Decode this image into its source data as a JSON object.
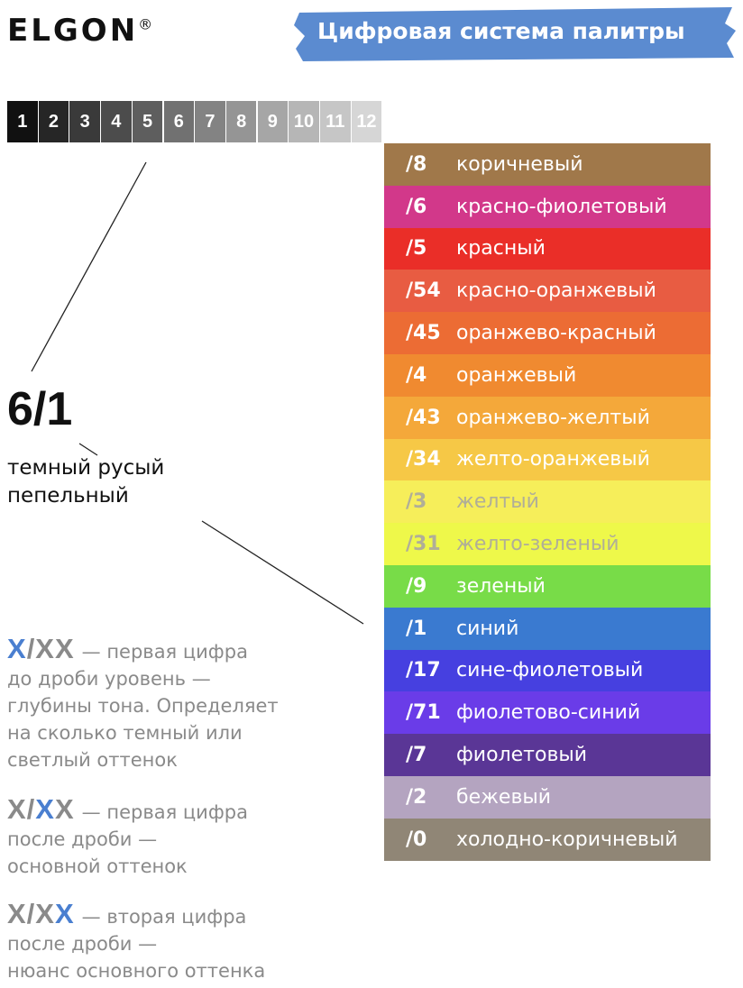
{
  "logo": {
    "text": "ELGON",
    "mark": "®"
  },
  "banner": {
    "title": "Цифровая система палитры",
    "color": "#5b8bd0"
  },
  "levels": [
    {
      "label": "1",
      "color": "#111111"
    },
    {
      "label": "2",
      "color": "#262626"
    },
    {
      "label": "3",
      "color": "#3a3a3a"
    },
    {
      "label": "4",
      "color": "#4c4c4c"
    },
    {
      "label": "5",
      "color": "#5e5e5e"
    },
    {
      "label": "6",
      "color": "#717171"
    },
    {
      "label": "7",
      "color": "#838383"
    },
    {
      "label": "8",
      "color": "#959595"
    },
    {
      "label": "9",
      "color": "#a6a6a6"
    },
    {
      "label": "10",
      "color": "#b6b6b6"
    },
    {
      "label": "11",
      "color": "#c6c6c6"
    },
    {
      "label": "12",
      "color": "#d6d6d6"
    }
  ],
  "example": {
    "code": "6/1",
    "description": [
      "темный русый",
      "пепельный"
    ]
  },
  "palette": [
    {
      "code": "/8",
      "name": "коричневый",
      "color": "#a0784a"
    },
    {
      "code": "/6",
      "name": "красно-фиолетовый",
      "color": "#d2388a"
    },
    {
      "code": "/5",
      "name": "красный",
      "color": "#ea2e28"
    },
    {
      "code": "/54",
      "name": "красно-оранжевый",
      "color": "#e85c42"
    },
    {
      "code": "/45",
      "name": "оранжево-красный",
      "color": "#ec6c34"
    },
    {
      "code": "/4",
      "name": "оранжевый",
      "color": "#f08a30"
    },
    {
      "code": "/43",
      "name": "оранжево-желтый",
      "color": "#f4a83a"
    },
    {
      "code": "/34",
      "name": "желто-оранжевый",
      "color": "#f6c846"
    },
    {
      "code": "/3",
      "name": "желтый",
      "color": "#f6ee5a"
    },
    {
      "code": "/31",
      "name": "желто-зеленый",
      "color": "#eef84a"
    },
    {
      "code": "/9",
      "name": "зеленый",
      "color": "#78dc48"
    },
    {
      "code": "/1",
      "name": "синий",
      "color": "#3a7ad0"
    },
    {
      "code": "/17",
      "name": "сине-фиолетовый",
      "color": "#4640e0"
    },
    {
      "code": "/71",
      "name": "фиолетово-синий",
      "color": "#6a3ce8"
    },
    {
      "code": "/7",
      "name": "фиолетовый",
      "color": "#5a3696"
    },
    {
      "code": "/2",
      "name": "бежевый",
      "color": "#b4a4c0"
    },
    {
      "code": "/0",
      "name": "холодно-коричневый",
      "color": "#908676"
    }
  ],
  "notes": [
    {
      "code": [
        {
          "text": "X",
          "color": "#4a7fd0"
        },
        {
          "text": "/XX",
          "color": "#8a8a8a"
        }
      ],
      "lines": [
        "— первая цифра",
        "до дроби уровень  —",
        "глубины тона. Определяет",
        "на сколько темный или",
        "светлый оттенок"
      ]
    },
    {
      "code": [
        {
          "text": "X/",
          "color": "#8a8a8a"
        },
        {
          "text": "X",
          "color": "#4a7fd0"
        },
        {
          "text": "X",
          "color": "#8a8a8a"
        }
      ],
      "lines": [
        "— первая цифра",
        "после дроби  —",
        "основной оттенок"
      ]
    },
    {
      "code": [
        {
          "text": "X/X",
          "color": "#8a8a8a"
        },
        {
          "text": "X",
          "color": "#4a7fd0"
        }
      ],
      "lines": [
        "— вторая цифра",
        "после дроби —",
        "нюанс основного оттенка"
      ]
    }
  ]
}
